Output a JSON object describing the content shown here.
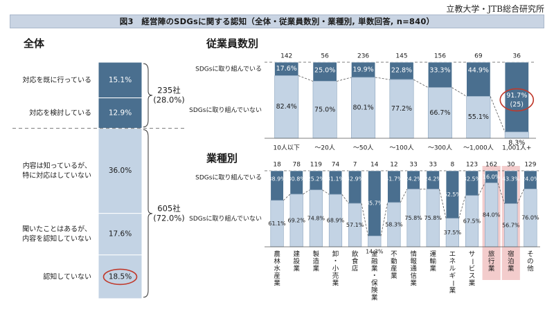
{
  "source": "立教大学・JTB総合研究所",
  "title": "図3　経営陣のSDGsに関する認知（全体・従業員数別・業種別, 単数回答, n=840）",
  "colors": {
    "dark": "#4a6f8f",
    "light": "#c3d3e4",
    "title_bg": "#c9d4e3",
    "highlight_bg": "#f3cccc",
    "circle": "#c0392b"
  },
  "chart_data": [
    {
      "type": "bar",
      "title": "全体",
      "stacked": true,
      "segments": [
        {
          "label": "対応を既に行っている",
          "value": 15.1,
          "value_label": "15.1%",
          "tone": "dark"
        },
        {
          "label": "対応を検討している",
          "value": 12.9,
          "value_label": "12.9%",
          "tone": "dark"
        },
        {
          "label": "内容は知っているが、\n特に対応はしていない",
          "value": 36.0,
          "value_label": "36.0%",
          "tone": "light"
        },
        {
          "label": "聞いたことはあるが、\n内容を認知していない",
          "value": 17.6,
          "value_label": "17.6%",
          "tone": "light"
        },
        {
          "label": "認知していない",
          "value": 18.5,
          "value_label": "18.5%",
          "tone": "light",
          "circled": true
        }
      ],
      "groups": [
        {
          "text": "235社\n(28.0%)"
        },
        {
          "text": "605社\n(72.0%)"
        }
      ]
    },
    {
      "type": "bar",
      "title": "従業員数別",
      "stacked": true,
      "row_labels": {
        "top": "SDGsに取り組んでいる",
        "bottom": "SDGsに取り組んでいない"
      },
      "categories": [
        "10人以下",
        "～20人",
        "～50人",
        "～100人",
        "～300人",
        "～1,000人",
        "1,001人+"
      ],
      "counts": [
        "142",
        "56",
        "236",
        "145",
        "156",
        "69",
        "36"
      ],
      "series": [
        {
          "name": "SDGsに取り組んでいる",
          "values": [
            17.6,
            25.0,
            19.9,
            22.8,
            33.3,
            44.9,
            91.7
          ],
          "labels": [
            "17.6%",
            "25.0%",
            "19.9%",
            "22.8%",
            "33.3%",
            "44.9%",
            "91.7%"
          ]
        },
        {
          "name": "SDGsに取り組んでいない",
          "values": [
            82.4,
            75.0,
            80.1,
            77.2,
            66.7,
            55.1,
            8.3
          ],
          "labels": [
            "82.4%",
            "75.0%",
            "80.1%",
            "77.2%",
            "66.7%",
            "55.1%",
            "8.3%"
          ]
        }
      ],
      "annotation": {
        "index": 6,
        "text": "(25)"
      }
    },
    {
      "type": "bar",
      "title": "業種別",
      "stacked": true,
      "row_labels": {
        "top": "SDGsに取り組んでいる",
        "bottom": "SDGsに取り組んでいない"
      },
      "categories": [
        "農林水産業",
        "建設業",
        "製造業",
        "卸・小売業",
        "飲食店",
        "金融業・保険業",
        "不動産業",
        "情報通信業",
        "運輸業",
        "エネルギー業",
        "サービス業",
        "旅行業",
        "宿泊業",
        "その他"
      ],
      "counts": [
        "18",
        "78",
        "119",
        "74",
        "7",
        "14",
        "12",
        "33",
        "33",
        "8",
        "123",
        "162",
        "30",
        "129"
      ],
      "highlight": [
        11,
        12
      ],
      "series": [
        {
          "name": "SDGsに取り組んでいる",
          "values": [
            38.9,
            30.8,
            25.2,
            31.1,
            42.9,
            85.7,
            41.7,
            24.2,
            24.2,
            62.5,
            32.5,
            16.0,
            43.3,
            24.0
          ],
          "labels": [
            "38.9%",
            "30.8%",
            "25.2%",
            "31.1%",
            "42.9%",
            "85.7%",
            "41.7%",
            "24.2%",
            "24.2%",
            "62.5%",
            "32.5%",
            "16.0%",
            "43.3%",
            "24.0%"
          ]
        },
        {
          "name": "SDGsに取り組んでいない",
          "values": [
            61.1,
            69.2,
            74.8,
            68.9,
            57.1,
            14.3,
            58.3,
            75.8,
            75.8,
            37.5,
            67.5,
            84.0,
            56.7,
            76.0
          ],
          "labels": [
            "61.1%",
            "69.2%",
            "74.8%",
            "68.9%",
            "57.1%",
            "14.3%",
            "58.3%",
            "75.8%",
            "75.8%",
            "37.5%",
            "67.5%",
            "84.0%",
            "56.7%",
            "76.0%"
          ]
        }
      ]
    }
  ]
}
